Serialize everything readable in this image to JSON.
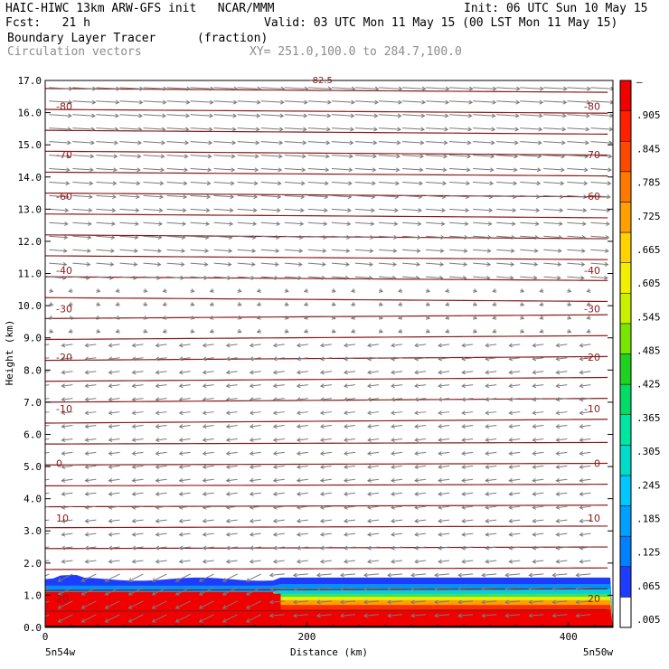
{
  "header": {
    "line1_left": "HAIC-HIWC 13km ARW-GFS init   NCAR/MMM",
    "line1_right": "Init: 06 UTC Sun 10 May 15",
    "line2_left": "Fcst:   21 h",
    "line2_right": "Valid: 03 UTC Mon 11 May 15 (00 LST Mon 11 May 15)",
    "line3_left": "Boundary Layer Tracer",
    "line3_units": "(fraction)",
    "line4_left": "Circulation vectors",
    "line4_xy": "XY= 251.0,100.0 to 284.7,100.0"
  },
  "chart_data": {
    "type": "heatmap",
    "xlabel": "Distance (km)",
    "ylabel": "Height (km)",
    "xlim": [
      0,
      434
    ],
    "ylim": [
      0,
      17
    ],
    "x_ticks": [
      0,
      200,
      400
    ],
    "y_ticks": [
      "0.0",
      "1.0",
      "2.0",
      "3.0",
      "4.0",
      "5.0",
      "6.0",
      "7.0",
      "8.0",
      "9.0",
      "10.0",
      "11.0",
      "12.0",
      "13.0",
      "14.0",
      "15.0",
      "16.0",
      "17.0"
    ],
    "x_endpoints": {
      "left": "5n54w",
      "right": "5n50w"
    },
    "colorbar": {
      "labels": [
        ".005",
        ".065",
        ".125",
        ".185",
        ".245",
        ".305",
        ".365",
        ".425",
        ".485",
        ".545",
        ".605",
        ".665",
        ".725",
        ".785",
        ".845",
        ".905",
        "–"
      ],
      "colors": [
        "#ffffff",
        "#1e3cff",
        "#0080ff",
        "#00a0ff",
        "#00c8ff",
        "#00dcc8",
        "#00e6a0",
        "#00dc64",
        "#20d220",
        "#78e600",
        "#c8f000",
        "#f0f000",
        "#ffd200",
        "#ffa000",
        "#ff7800",
        "#ff4800",
        "#ff2000",
        "#f00000"
      ]
    },
    "contour_labels": [
      {
        "value": "-80",
        "height_km": 16.2
      },
      {
        "value": "-70",
        "height_km": 14.7
      },
      {
        "value": "-60",
        "height_km": 13.4
      },
      {
        "value": "-40",
        "height_km": 11.1
      },
      {
        "value": "-30",
        "height_km": 9.9
      },
      {
        "value": "-20",
        "height_km": 8.4
      },
      {
        "value": "-10",
        "height_km": 6.8
      },
      {
        "value": "0",
        "height_km": 5.1
      },
      {
        "value": "10",
        "height_km": 3.4
      },
      {
        "value": "20",
        "height_km": 0.9
      }
    ],
    "top_label": "-82.5",
    "tracer_layer_top_km": 1.4,
    "notes": "Red isotherm contours; grey circulation vectors; tracer fraction shading near surface"
  }
}
